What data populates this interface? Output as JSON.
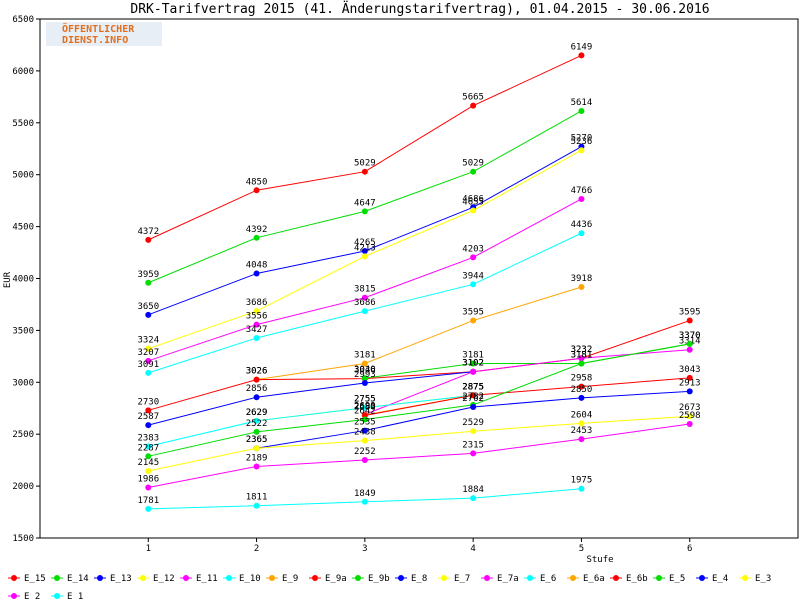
{
  "chart_data": {
    "type": "line",
    "title": "DRK-Tarifvertrag 2015 (41. Änderungstarifvertrag), 01.04.2015 - 30.06.2016",
    "watermark": [
      "ÖFFENTLICHER",
      "DIENST.INFO"
    ],
    "x_label": "Stufe",
    "y_label": "EUR",
    "x": [
      1,
      2,
      3,
      4,
      5,
      6
    ],
    "xlim": [
      0,
      7
    ],
    "xticks": [
      1,
      2,
      3,
      4,
      5,
      6
    ],
    "ylim": [
      1500,
      6500
    ],
    "yticks": [
      1500,
      2000,
      2500,
      3000,
      3500,
      4000,
      4500,
      5000,
      5500,
      6000,
      6500
    ],
    "series": [
      {
        "name": "E_15",
        "color": "#ff0000",
        "values": [
          4372,
          4850,
          5029,
          5665,
          6149,
          null
        ]
      },
      {
        "name": "E_14",
        "color": "#00dd00",
        "values": [
          3959,
          4392,
          4647,
          5029,
          5614,
          null
        ]
      },
      {
        "name": "E_13",
        "color": "#0000ff",
        "values": [
          3650,
          4048,
          4265,
          4686,
          5270,
          null
        ]
      },
      {
        "name": "E_12",
        "color": "#ffff00",
        "values": [
          3324,
          3686,
          4213,
          4655,
          5236,
          null
        ]
      },
      {
        "name": "E_11",
        "color": "#ff00ff",
        "values": [
          3207,
          3556,
          3815,
          4203,
          4766,
          null
        ]
      },
      {
        "name": "E_10",
        "color": "#00ffff",
        "values": [
          3091,
          3427,
          3686,
          3944,
          4436,
          null
        ]
      },
      {
        "name": "E_9",
        "color": "#ffa500",
        "values": [
          null,
          3026,
          3181,
          3595,
          3918,
          null
        ]
      },
      {
        "name": "E_9a",
        "color": "#ff0000",
        "values": [
          2730,
          3026,
          3036,
          3102,
          3232,
          3595
        ]
      },
      {
        "name": "E_9b",
        "color": "#00dd00",
        "values": [
          null,
          null,
          3040,
          3181,
          3181,
          3370
        ]
      },
      {
        "name": "E_8",
        "color": "#0000ff",
        "values": [
          2587,
          2856,
          2993,
          3102,
          null,
          null
        ]
      },
      {
        "name": "E_7",
        "color": "#ffff00",
        "values": [
          null,
          2629,
          2755,
          2875,
          null,
          null
        ]
      },
      {
        "name": "E_7a",
        "color": "#ff00ff",
        "values": [
          null,
          null,
          2690,
          3102,
          3232,
          3314
        ]
      },
      {
        "name": "E_6",
        "color": "#00ffff",
        "values": [
          2383,
          2629,
          2755,
          2875,
          null,
          null
        ]
      },
      {
        "name": "E_6a",
        "color": "#ffa500",
        "values": [
          null,
          null,
          2685,
          2875,
          null,
          null
        ]
      },
      {
        "name": "E_6b",
        "color": "#ff0000",
        "values": [
          null,
          null,
          2680,
          2875,
          2958,
          3043
        ]
      },
      {
        "name": "E_5",
        "color": "#00dd00",
        "values": [
          2287,
          2522,
          2642,
          2782,
          3181,
          3370
        ]
      },
      {
        "name": "E_4",
        "color": "#0000ff",
        "values": [
          null,
          2365,
          2535,
          2762,
          2850,
          2913
        ]
      },
      {
        "name": "E_3",
        "color": "#ffff00",
        "values": [
          2145,
          2365,
          2438,
          2529,
          2604,
          2673
        ]
      },
      {
        "name": "E_2",
        "color": "#ff00ff",
        "values": [
          1986,
          2189,
          2252,
          2315,
          2453,
          2598
        ]
      },
      {
        "name": "E_1",
        "color": "#00ffff",
        "values": [
          1781,
          1811,
          1849,
          1884,
          1975,
          null
        ]
      }
    ]
  }
}
